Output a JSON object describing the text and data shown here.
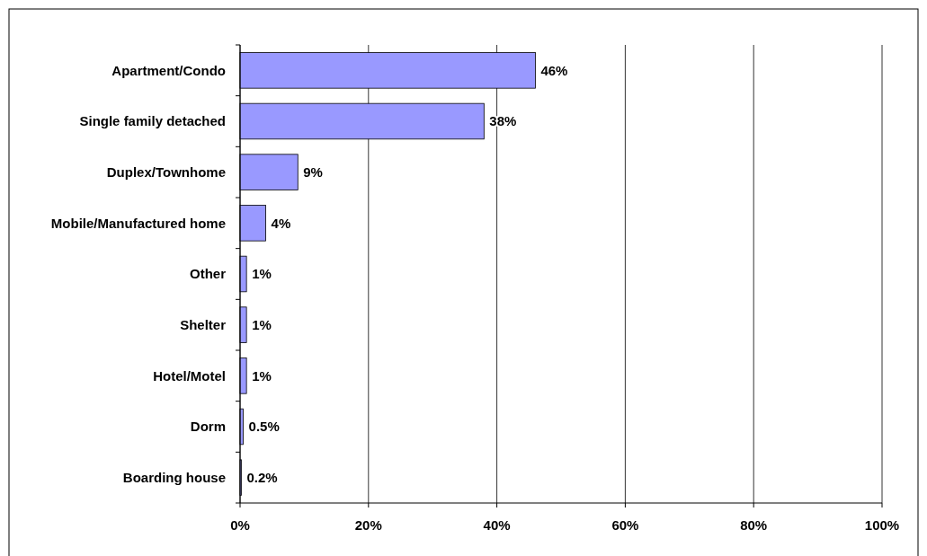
{
  "chart_data": {
    "type": "bar",
    "orientation": "horizontal",
    "categories": [
      "Apartment/Condo",
      "Single family detached",
      "Duplex/Townhome",
      "Mobile/Manufactured home",
      "Other",
      "Shelter",
      "Hotel/Motel",
      "Dorm",
      "Boarding house"
    ],
    "values": [
      46,
      38,
      9,
      4,
      1,
      1,
      1,
      0.5,
      0.2
    ],
    "value_labels": [
      "46%",
      "38%",
      "9%",
      "4%",
      "1%",
      "1%",
      "1%",
      "0.5%",
      "0.2%"
    ],
    "color": "#9999ff",
    "xlim": [
      0,
      100
    ],
    "xticks": [
      {
        "value": 0,
        "label": "0%"
      },
      {
        "value": 20,
        "label": "20%"
      },
      {
        "value": 40,
        "label": "40%"
      },
      {
        "value": 60,
        "label": "60%"
      },
      {
        "value": 80,
        "label": "80%"
      },
      {
        "value": 100,
        "label": "100%"
      }
    ],
    "grid": "x"
  }
}
